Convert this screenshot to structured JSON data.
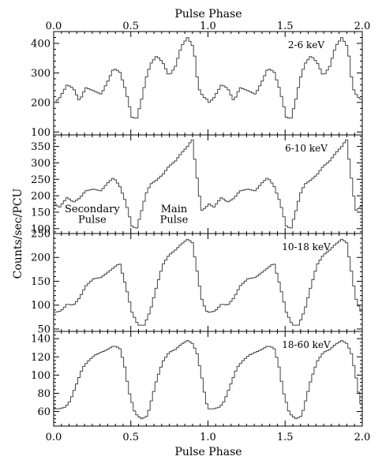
{
  "chart_data": {
    "type": "line",
    "title": "",
    "top_xlabel": "Pulse Phase",
    "xlabel": "Pulse Phase",
    "ylabel": "Counts/sec/PCU",
    "xlim": [
      0.0,
      2.0
    ],
    "xticks": [
      0.0,
      0.5,
      1.0,
      1.5,
      2.0
    ],
    "xtick_labels": [
      "0.0",
      "0.5",
      "1.0",
      "1.5",
      "2.0"
    ],
    "grid": false,
    "panels": [
      {
        "label": "2-6 keV",
        "ylim": [
          90,
          440
        ],
        "yticks": [
          100,
          200,
          300,
          400
        ],
        "ytick_labels": [
          "100",
          "200",
          "300",
          "400"
        ],
        "x": [
          0.0,
          0.03,
          0.08,
          0.12,
          0.16,
          0.2,
          0.25,
          0.3,
          0.34,
          0.38,
          0.42,
          0.46,
          0.5,
          0.53,
          0.56,
          0.59,
          0.62,
          0.66,
          0.7,
          0.74,
          0.78,
          0.82,
          0.86,
          0.9,
          0.93,
          0.96,
          1.0
        ],
        "y": [
          200,
          215,
          260,
          248,
          205,
          250,
          240,
          228,
          268,
          315,
          305,
          240,
          150,
          145,
          205,
          280,
          330,
          358,
          335,
          290,
          320,
          390,
          420,
          385,
          250,
          220,
          205
        ]
      },
      {
        "label": "6-10 keV",
        "ylim": [
          85,
          385
        ],
        "yticks": [
          100,
          150,
          200,
          250,
          300,
          350
        ],
        "ytick_labels": [
          "100",
          "150",
          "200",
          "250",
          "300",
          "350"
        ],
        "x": [
          0.0,
          0.03,
          0.08,
          0.12,
          0.16,
          0.2,
          0.25,
          0.3,
          0.34,
          0.38,
          0.42,
          0.46,
          0.5,
          0.53,
          0.56,
          0.59,
          0.62,
          0.66,
          0.7,
          0.74,
          0.78,
          0.82,
          0.86,
          0.89,
          0.92,
          0.95,
          0.98,
          1.0
        ],
        "y": [
          175,
          165,
          195,
          180,
          192,
          215,
          220,
          215,
          238,
          255,
          230,
          180,
          108,
          100,
          150,
          205,
          235,
          248,
          265,
          290,
          305,
          330,
          350,
          372,
          260,
          155,
          165,
          175
        ]
      },
      {
        "label": "10-18 keV",
        "ylim": [
          45,
          250
        ],
        "yticks": [
          50,
          100,
          150,
          200,
          250
        ],
        "ytick_labels": [
          "50",
          "100",
          "150",
          "200",
          "250"
        ],
        "x": [
          0.0,
          0.04,
          0.08,
          0.12,
          0.16,
          0.2,
          0.25,
          0.3,
          0.34,
          0.38,
          0.42,
          0.46,
          0.5,
          0.54,
          0.58,
          0.62,
          0.66,
          0.7,
          0.74,
          0.78,
          0.82,
          0.86,
          0.89,
          0.92,
          0.95,
          0.98,
          1.0
        ],
        "y": [
          85,
          88,
          102,
          100,
          115,
          140,
          155,
          158,
          168,
          178,
          188,
          140,
          85,
          58,
          58,
          90,
          140,
          185,
          205,
          215,
          228,
          238,
          232,
          175,
          115,
          88,
          85
        ]
      },
      {
        "label": "18-60 keV",
        "ylim": [
          44,
          148
        ],
        "yticks": [
          60,
          80,
          100,
          120,
          140
        ],
        "ytick_labels": [
          "60",
          "80",
          "100",
          "120",
          "140"
        ],
        "x": [
          0.0,
          0.03,
          0.07,
          0.1,
          0.14,
          0.18,
          0.22,
          0.26,
          0.3,
          0.34,
          0.38,
          0.42,
          0.45,
          0.48,
          0.52,
          0.56,
          0.6,
          0.63,
          0.66,
          0.7,
          0.74,
          0.78,
          0.82,
          0.86,
          0.89,
          0.92,
          0.95,
          0.98,
          1.0
        ],
        "y": [
          63,
          63,
          65,
          72,
          90,
          108,
          116,
          122,
          125,
          128,
          132,
          130,
          112,
          82,
          58,
          52,
          55,
          75,
          95,
          115,
          125,
          128,
          134,
          138,
          135,
          125,
          100,
          70,
          63
        ]
      }
    ],
    "annotations": [
      {
        "text": "Secondary",
        "panel": 1,
        "x": 0.25,
        "y": 150
      },
      {
        "text": "Pulse",
        "panel": 1,
        "x": 0.25,
        "y": 117
      },
      {
        "text": "Main",
        "panel": 1,
        "x": 0.78,
        "y": 150
      },
      {
        "text": "Pulse",
        "panel": 1,
        "x": 0.78,
        "y": 117
      }
    ]
  }
}
